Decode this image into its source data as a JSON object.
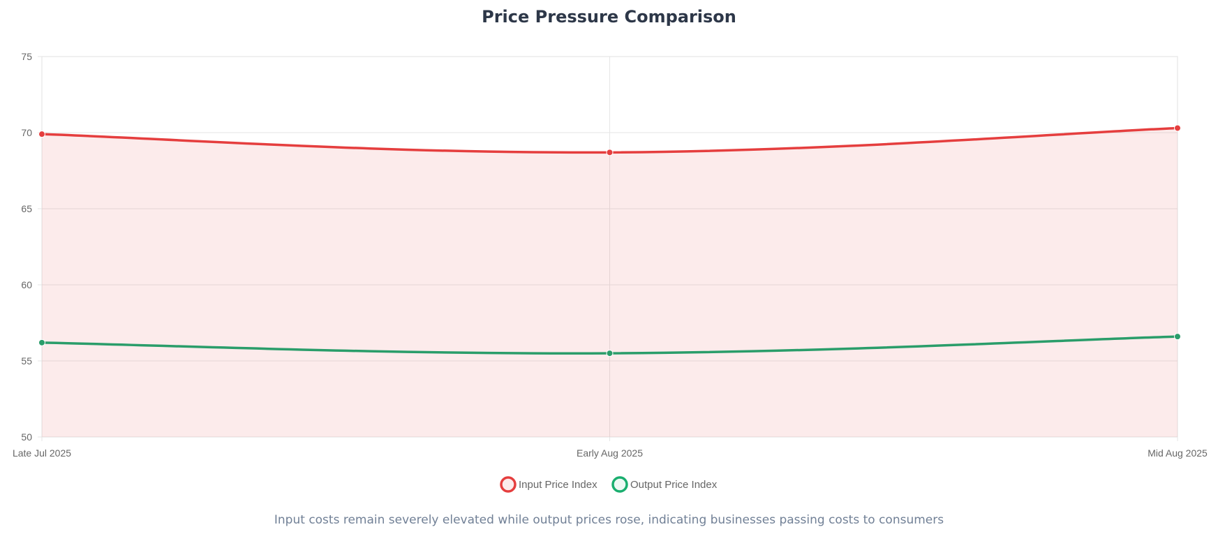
{
  "chart_data": {
    "type": "line",
    "title": "Price Pressure Comparison",
    "categories": [
      "Late Jul 2025",
      "Early Aug 2025",
      "Mid Aug 2025"
    ],
    "series": [
      {
        "name": "Input Price Index",
        "values": [
          69.9,
          68.7,
          70.3
        ],
        "color": "#e53e3e",
        "fill": "rgba(229,62,62,0.10)"
      },
      {
        "name": "Output Price Index",
        "values": [
          56.2,
          55.5,
          56.6
        ],
        "color": "#2a9d6a",
        "fill": "none"
      }
    ],
    "ylim": [
      50,
      75
    ],
    "yticks": [
      50,
      55,
      60,
      65,
      70,
      75
    ],
    "xlabel": "",
    "ylabel": "",
    "grid": true,
    "legend_position": "bottom",
    "legend_colors": [
      "#e53e3e",
      "#1aae6f"
    ],
    "caption": "Input costs remain severely elevated while output prices rose, indicating businesses passing costs to consumers"
  }
}
